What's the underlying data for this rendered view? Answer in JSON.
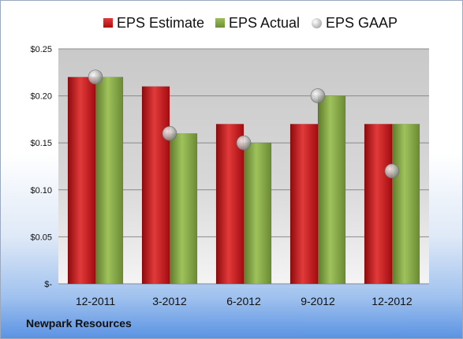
{
  "chart_data": {
    "type": "bar",
    "categories": [
      "12-2011",
      "3-2012",
      "6-2012",
      "9-2012",
      "12-2012"
    ],
    "series": [
      {
        "name": "EPS Estimate",
        "values": [
          0.22,
          0.21,
          0.17,
          0.17,
          0.17
        ],
        "color": "#c8171c"
      },
      {
        "name": "EPS Actual",
        "values": [
          0.22,
          0.16,
          0.15,
          0.2,
          0.17
        ],
        "color": "#86a845"
      },
      {
        "name": "EPS GAAP",
        "values": [
          0.22,
          0.16,
          0.15,
          0.2,
          0.12
        ],
        "color": "#b8b8b8",
        "marker": "sphere"
      }
    ],
    "ylim": [
      0,
      0.25
    ],
    "yticks": [
      0,
      0.05,
      0.1,
      0.15,
      0.2,
      0.25
    ],
    "ytick_labels": [
      "$-",
      "$0.05",
      "$0.10",
      "$0.15",
      "$0.20",
      "$0.25"
    ],
    "grid": true,
    "legend_position": "top"
  },
  "footer": {
    "company": "Newpark Resources"
  }
}
